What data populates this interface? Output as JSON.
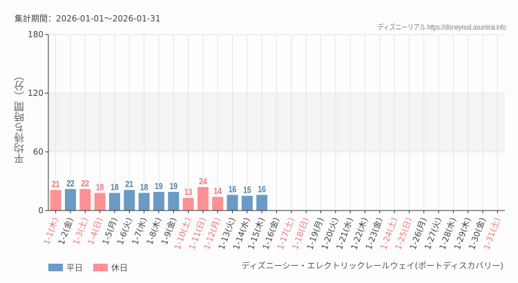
{
  "header": {
    "period": "集計期間：2026-01-01～2026-01-31",
    "site": "ディズニーリアル https://disneyreal.asumirai.info"
  },
  "footer": {
    "attraction": "ディズニーシー・エレクトリックレールウェイ(ポートディスカバリー)"
  },
  "colors": {
    "weekday": "#6b9ac4",
    "holiday": "#ff9194",
    "weekday_text": "#4f7fae",
    "holiday_text": "#f0777b",
    "band": "#f3f4f3",
    "grid": "#e4e4e4",
    "axis": "#333333"
  },
  "chart_data": {
    "type": "bar",
    "title": "",
    "xlabel": "",
    "ylabel": "平均待ち時間（分）",
    "ylim": [
      0,
      180
    ],
    "yticks": [
      0,
      60,
      120,
      180
    ],
    "band": [
      60,
      120
    ],
    "grid": true,
    "legend_position": "bottom-left",
    "legend": [
      {
        "name": "平日",
        "key": "weekday"
      },
      {
        "name": "休日",
        "key": "holiday"
      }
    ],
    "categories": [
      "1-1(木)",
      "1-2(金)",
      "1-3(土)",
      "1-4(日)",
      "1-5(月)",
      "1-6(火)",
      "1-7(水)",
      "1-8(木)",
      "1-9(金)",
      "1-10(土)",
      "1-11(日)",
      "1-12(月)",
      "1-13(火)",
      "1-14(水)",
      "1-15(木)",
      "1-16(金)",
      "1-17(土)",
      "1-18(日)",
      "1-19(月)",
      "1-20(火)",
      "1-21(水)",
      "1-22(木)",
      "1-23(金)",
      "1-24(土)",
      "1-25(日)",
      "1-26(月)",
      "1-27(火)",
      "1-28(水)",
      "1-29(木)",
      "1-30(金)",
      "1-31(土)"
    ],
    "day_type": [
      "holiday",
      "weekday",
      "holiday",
      "holiday",
      "weekday",
      "weekday",
      "weekday",
      "weekday",
      "weekday",
      "holiday",
      "holiday",
      "holiday",
      "weekday",
      "weekday",
      "weekday",
      "weekday",
      "holiday",
      "holiday",
      "weekday",
      "weekday",
      "weekday",
      "weekday",
      "weekday",
      "holiday",
      "holiday",
      "weekday",
      "weekday",
      "weekday",
      "weekday",
      "weekday",
      "holiday"
    ],
    "values": [
      21,
      22,
      22,
      18,
      18,
      21,
      18,
      19,
      19,
      13,
      24,
      14,
      16,
      15,
      16,
      null,
      null,
      null,
      null,
      null,
      null,
      null,
      null,
      null,
      null,
      null,
      null,
      null,
      null,
      null,
      null
    ]
  }
}
